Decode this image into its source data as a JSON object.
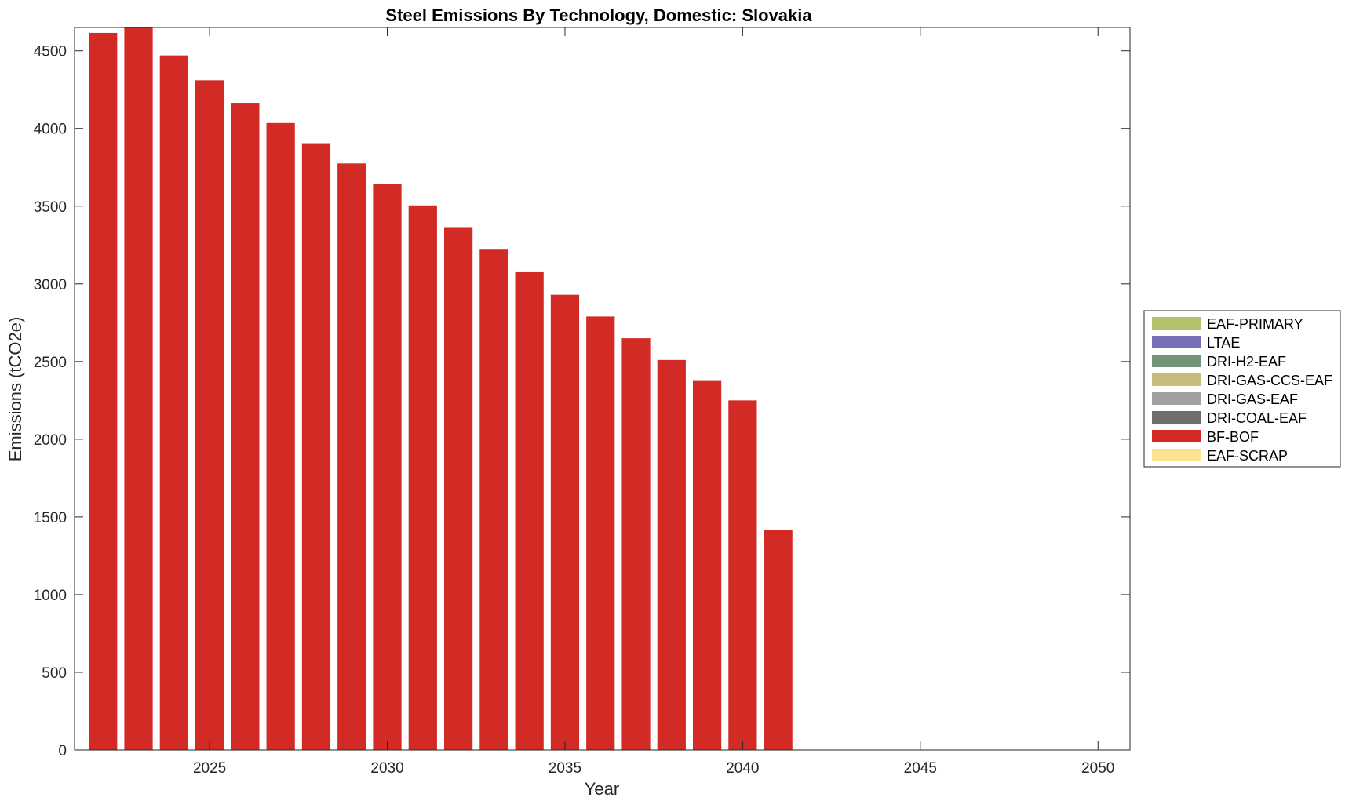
{
  "chart_data": {
    "type": "bar",
    "stacked": true,
    "title": "Steel Emissions By Technology, Domestic: Slovakia",
    "xlabel": "Year",
    "ylabel": "Emissions (tCO2e)",
    "xlim": [
      2021.2,
      2050.9
    ],
    "ylim": [
      0,
      4650
    ],
    "xticks": [
      2025,
      2030,
      2035,
      2040,
      2045,
      2050
    ],
    "yticks": [
      0,
      500,
      1000,
      1500,
      2000,
      2500,
      3000,
      3500,
      4000,
      4500
    ],
    "legend_position": "right",
    "x": [
      2022,
      2023,
      2024,
      2025,
      2026,
      2027,
      2028,
      2029,
      2030,
      2031,
      2032,
      2033,
      2034,
      2035,
      2036,
      2037,
      2038,
      2039,
      2040,
      2041,
      2042,
      2043,
      2044,
      2045,
      2046,
      2047,
      2048,
      2049,
      2050
    ],
    "series": [
      {
        "name": "EAF-PRIMARY",
        "color": "#b5c16b",
        "values": [
          0,
          0,
          0,
          0,
          0,
          0,
          0,
          0,
          0,
          0,
          0,
          0,
          0,
          0,
          0,
          0,
          0,
          0,
          0,
          0,
          0,
          0,
          0,
          0,
          0,
          0,
          0,
          0,
          0
        ]
      },
      {
        "name": "LTAE",
        "color": "#7570b8",
        "values": [
          0,
          0,
          0,
          0,
          0,
          0,
          0,
          0,
          0,
          0,
          0,
          0,
          0,
          0,
          0,
          0,
          0,
          0,
          0,
          0,
          0,
          0,
          0,
          0,
          0,
          0,
          0,
          0,
          0
        ]
      },
      {
        "name": "DRI-H2-EAF",
        "color": "#739479",
        "values": [
          0,
          0,
          0,
          0,
          0,
          0,
          0,
          0,
          0,
          0,
          0,
          0,
          0,
          0,
          0,
          0,
          0,
          0,
          0,
          0,
          0,
          0,
          0,
          0,
          0,
          0,
          0,
          0,
          0
        ]
      },
      {
        "name": "DRI-GAS-CCS-EAF",
        "color": "#c6bc7d",
        "values": [
          0,
          0,
          0,
          0,
          0,
          0,
          0,
          0,
          0,
          0,
          0,
          0,
          0,
          0,
          0,
          0,
          0,
          0,
          0,
          0,
          0,
          0,
          0,
          0,
          0,
          0,
          0,
          0,
          0
        ]
      },
      {
        "name": "DRI-GAS-EAF",
        "color": "#a0a0a0",
        "values": [
          0,
          0,
          0,
          0,
          0,
          0,
          0,
          0,
          0,
          0,
          0,
          0,
          0,
          0,
          0,
          0,
          0,
          0,
          0,
          0,
          0,
          0,
          0,
          0,
          0,
          0,
          0,
          0,
          0
        ]
      },
      {
        "name": "DRI-COAL-EAF",
        "color": "#6e6e6e",
        "values": [
          0,
          0,
          0,
          0,
          0,
          0,
          0,
          0,
          0,
          0,
          0,
          0,
          0,
          0,
          0,
          0,
          0,
          0,
          0,
          0,
          0,
          0,
          0,
          0,
          0,
          0,
          0,
          0,
          0
        ]
      },
      {
        "name": "BF-BOF",
        "color": "#d22a25",
        "values": [
          4615,
          4650,
          4470,
          4310,
          4165,
          4035,
          3905,
          3775,
          3645,
          3505,
          3365,
          3220,
          3075,
          2930,
          2790,
          2650,
          2510,
          2375,
          2250,
          1415,
          0,
          0,
          0,
          0,
          0,
          0,
          0,
          0,
          0
        ]
      },
      {
        "name": "EAF-SCRAP",
        "color": "#fde28f",
        "values": [
          0,
          0,
          0,
          0,
          0,
          0,
          0,
          0,
          0,
          0,
          0,
          0,
          0,
          0,
          0,
          0,
          0,
          0,
          0,
          0,
          0,
          0,
          0,
          0,
          0,
          0,
          0,
          0,
          0
        ]
      }
    ]
  }
}
